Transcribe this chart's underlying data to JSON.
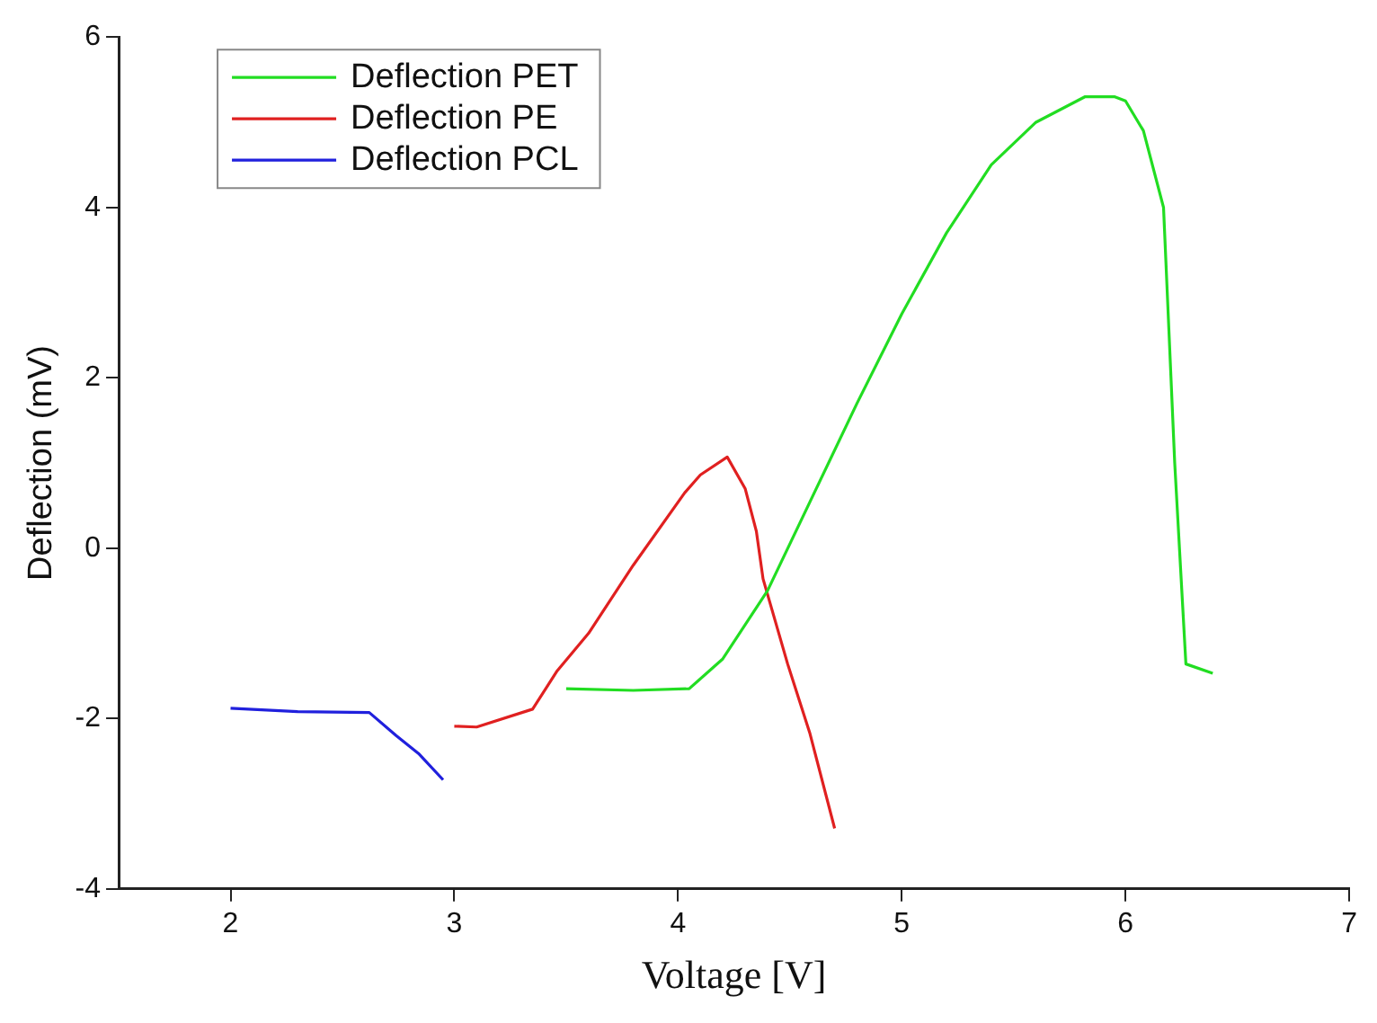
{
  "chart_data": {
    "type": "line",
    "xlabel": "Voltage [V]",
    "ylabel": "Deflection (mV)",
    "xlim": [
      1.5,
      7
    ],
    "xticks": [
      2,
      3,
      4,
      5,
      6,
      7
    ],
    "ylim": [
      -4,
      6
    ],
    "yticks": [
      -4,
      -2,
      0,
      2,
      4,
      6
    ],
    "grid": false,
    "legend": "top left",
    "marker": "none",
    "line_style": "solid",
    "series": [
      {
        "name": "Deflection PET",
        "color": "#22dd22",
        "x": [
          3.5,
          3.8,
          4.05,
          4.2,
          4.4,
          4.6,
          4.8,
          5.0,
          5.2,
          5.4,
          5.6,
          5.82,
          5.95,
          6.0,
          6.08,
          6.17,
          6.22,
          6.27,
          6.39
        ],
        "values": [
          -1.65,
          -1.67,
          -1.65,
          -1.3,
          -0.5,
          0.6,
          1.7,
          2.75,
          3.7,
          4.5,
          5.0,
          5.3,
          5.3,
          5.25,
          4.9,
          4.0,
          1.0,
          -1.36,
          -1.47
        ]
      },
      {
        "name": "Deflection PE",
        "color": "#e02020",
        "x": [
          3.0,
          3.1,
          3.35,
          3.46,
          3.6,
          3.8,
          4.03,
          4.1,
          4.22,
          4.3,
          4.35,
          4.38,
          4.49,
          4.59,
          4.7
        ],
        "values": [
          -2.09,
          -2.1,
          -1.89,
          -1.44,
          -1.0,
          -0.2,
          0.65,
          0.86,
          1.07,
          0.7,
          0.2,
          -0.36,
          -1.36,
          -2.18,
          -3.29
        ]
      },
      {
        "name": "Deflection PCL",
        "color": "#2020dd",
        "x": [
          2.0,
          2.3,
          2.62,
          2.74,
          2.84,
          2.95
        ],
        "values": [
          -1.88,
          -1.92,
          -1.93,
          -2.2,
          -2.41,
          -2.72
        ]
      }
    ]
  }
}
